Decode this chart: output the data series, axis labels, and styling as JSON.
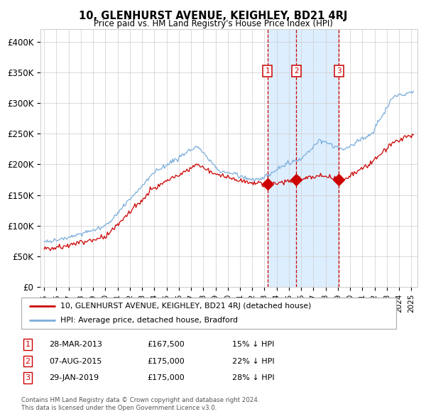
{
  "title": "10, GLENHURST AVENUE, KEIGHLEY, BD21 4RJ",
  "subtitle": "Price paid vs. HM Land Registry's House Price Index (HPI)",
  "legend_line1": "10, GLENHURST AVENUE, KEIGHLEY, BD21 4RJ (detached house)",
  "legend_line2": "HPI: Average price, detached house, Bradford",
  "footer1": "Contains HM Land Registry data © Crown copyright and database right 2024.",
  "footer2": "This data is licensed under the Open Government Licence v3.0.",
  "transactions": [
    {
      "num": 1,
      "date": "28-MAR-2013",
      "price": "£167,500",
      "pct": "15% ↓ HPI"
    },
    {
      "num": 2,
      "date": "07-AUG-2015",
      "price": "£175,000",
      "pct": "22% ↓ HPI"
    },
    {
      "num": 3,
      "date": "29-JAN-2019",
      "price": "£175,000",
      "pct": "28% ↓ HPI"
    }
  ],
  "transaction_dates_decimal": [
    2013.24,
    2015.6,
    2019.08
  ],
  "marker_prices": [
    167500,
    175000,
    175000
  ],
  "red_color": "#cc0000",
  "blue_color": "#7aaddb",
  "bg_color": "#ddeeff",
  "grid_color": "#cccccc",
  "ylim": [
    0,
    420000
  ],
  "yticks": [
    0,
    50000,
    100000,
    150000,
    200000,
    250000,
    300000,
    350000,
    400000
  ],
  "ytick_labels": [
    "£0",
    "£50K",
    "£100K",
    "£150K",
    "£200K",
    "£250K",
    "£300K",
    "£350K",
    "£400K"
  ],
  "xlim_start": 1994.7,
  "xlim_end": 2025.5,
  "xtick_years": [
    1995,
    1996,
    1997,
    1998,
    1999,
    2000,
    2001,
    2002,
    2003,
    2004,
    2005,
    2006,
    2007,
    2008,
    2009,
    2010,
    2011,
    2012,
    2013,
    2014,
    2015,
    2016,
    2017,
    2018,
    2019,
    2020,
    2021,
    2022,
    2023,
    2024,
    2025
  ]
}
